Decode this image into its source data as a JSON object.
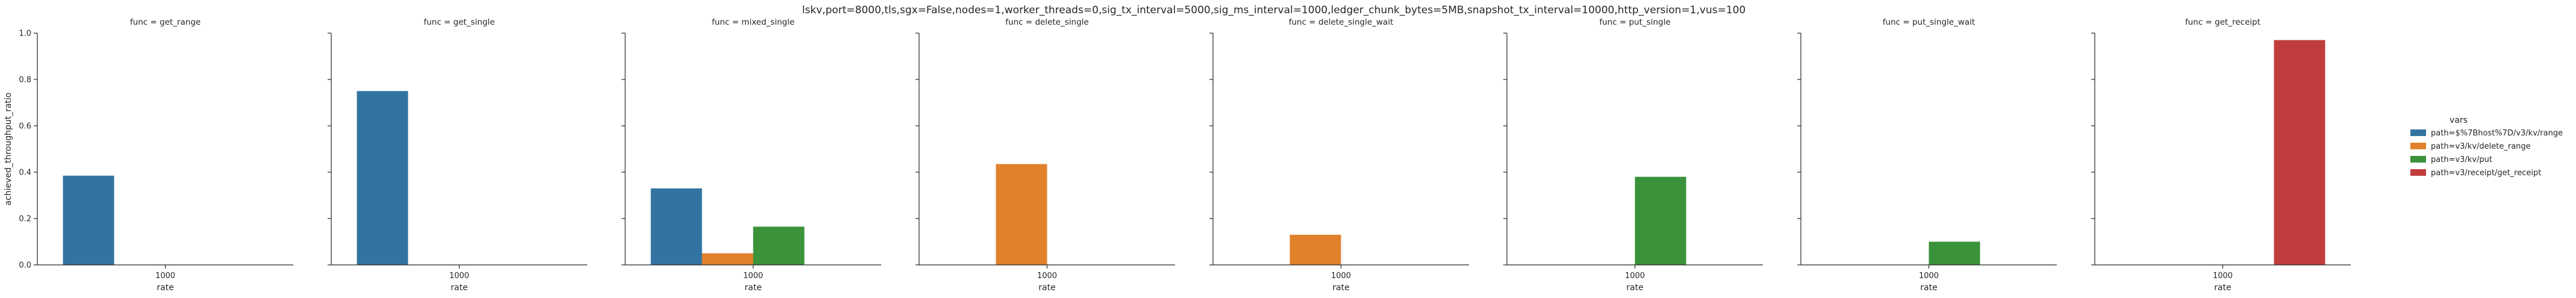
{
  "chart_data": {
    "type": "bar",
    "title": "lskv,port=8000,tls,sgx=False,nodes=1,worker_threads=0,sig_tx_interval=5000,sig_ms_interval=1000,ledger_chunk_bytes=5MB,snapshot_tx_interval=10000,http_version=1,vus=100",
    "xlabel": "rate",
    "ylabel": "achieved_throughput_ratio",
    "ylim": [
      0,
      1.0
    ],
    "yticks": [
      "0.0",
      "0.2",
      "0.4",
      "0.6",
      "0.8",
      "1.0"
    ],
    "categories": [
      "1000"
    ],
    "legend": {
      "title": "vars",
      "placement": "right",
      "entries": [
        {
          "label": "path=$%7Bhost%7D/v3/kv/range",
          "color": "#3274a1"
        },
        {
          "label": "path=v3/kv/delete_range",
          "color": "#e1812c"
        },
        {
          "label": "path=v3/kv/put",
          "color": "#3a923a"
        },
        {
          "label": "path=v3/receipt/get_receipt",
          "color": "#c03d3e"
        }
      ]
    },
    "panels": [
      {
        "title": "func = get_range",
        "values": [
          0.385,
          null,
          null,
          null
        ]
      },
      {
        "title": "func = get_single",
        "values": [
          0.75,
          null,
          null,
          null
        ]
      },
      {
        "title": "func = mixed_single",
        "values": [
          0.33,
          0.05,
          0.165,
          null
        ]
      },
      {
        "title": "func = delete_single",
        "values": [
          null,
          0.435,
          null,
          null
        ]
      },
      {
        "title": "func = delete_single_wait",
        "values": [
          null,
          0.13,
          null,
          null
        ]
      },
      {
        "title": "func = put_single",
        "values": [
          null,
          null,
          0.38,
          null
        ]
      },
      {
        "title": "func = put_single_wait",
        "values": [
          null,
          null,
          0.1,
          null
        ]
      },
      {
        "title": "func = get_receipt",
        "values": [
          null,
          null,
          null,
          0.97
        ]
      }
    ]
  }
}
